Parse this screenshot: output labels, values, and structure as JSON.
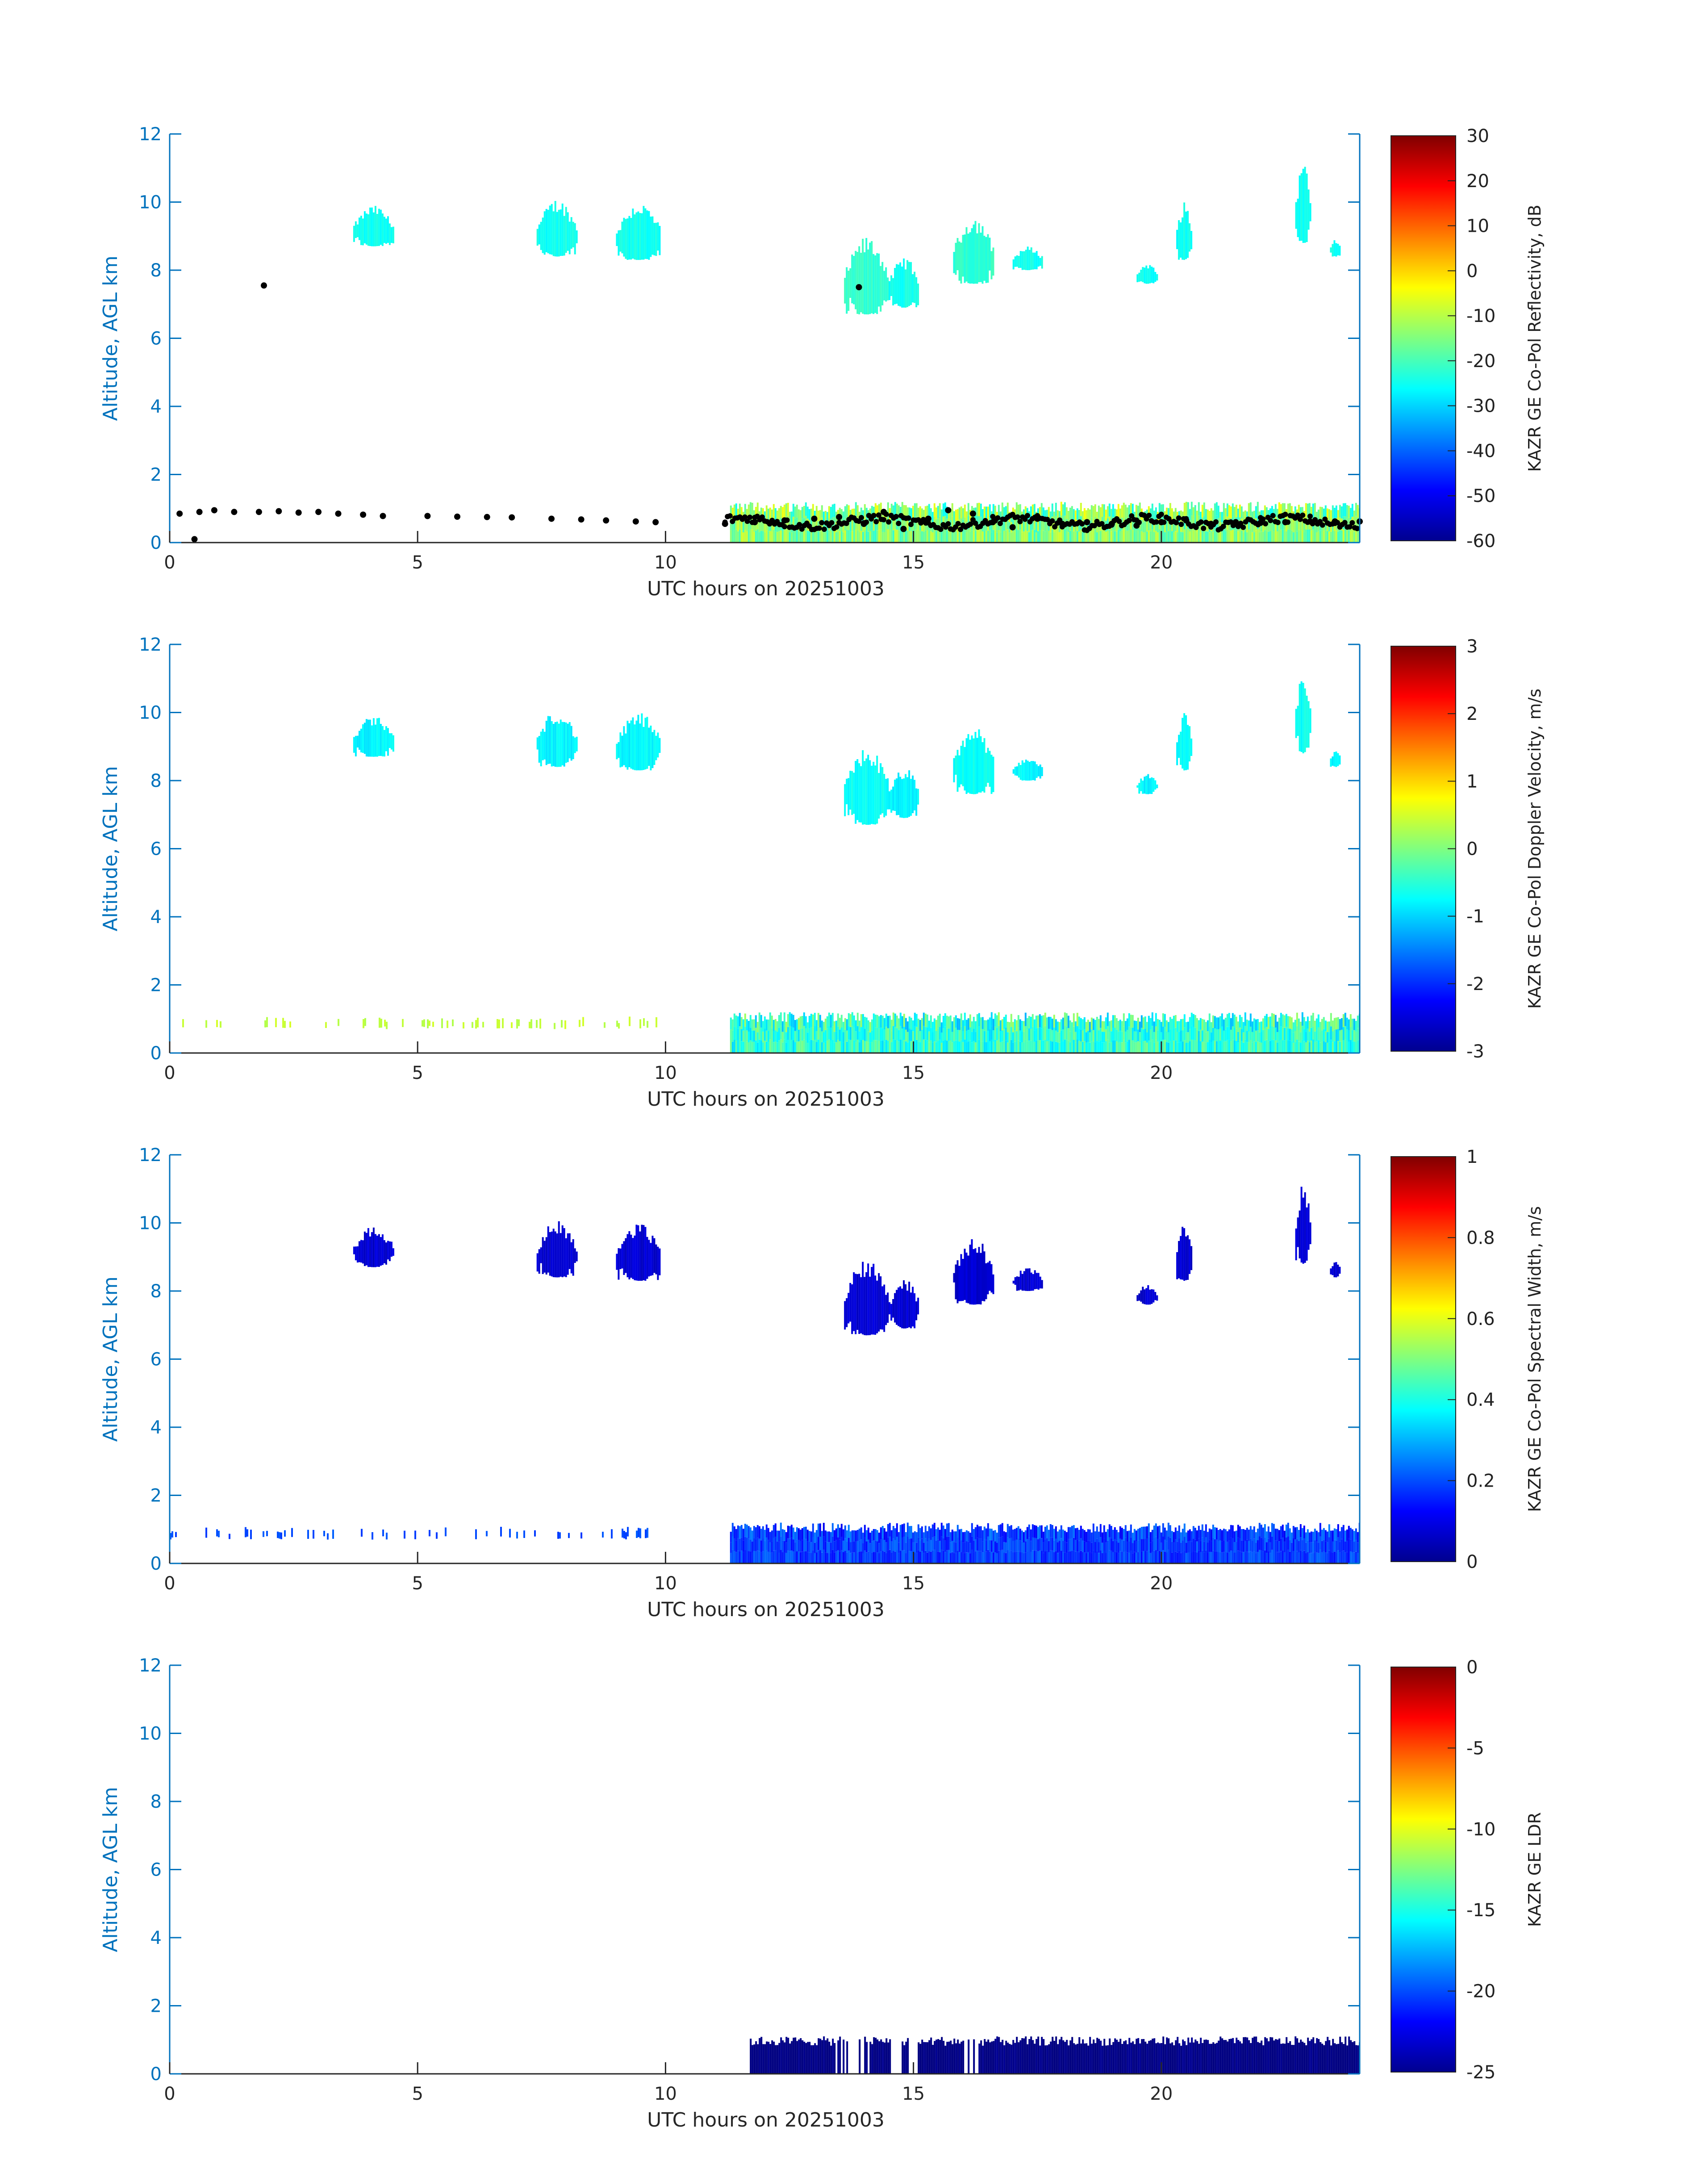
{
  "colors": {
    "axis_y": "#0072BD",
    "axis_x": "#262626",
    "text": "#222222"
  },
  "chart_data": [
    {
      "type": "heatmap",
      "title": "",
      "xlabel": "UTC hours on 20251003",
      "ylabel": "Altitude, AGL km",
      "xlim": [
        0,
        24
      ],
      "ylim": [
        0,
        12
      ],
      "xticks": [
        "0",
        "5",
        "10",
        "15",
        "20"
      ],
      "yticks": [
        "0",
        "2",
        "4",
        "6",
        "8",
        "10",
        "12"
      ],
      "colorbar": {
        "label": "KAZR GE Co-Pol Reflectivity, dB",
        "ticks": [
          "-60",
          "-50",
          "-40",
          "-30",
          "-20",
          "-10",
          "0",
          "10",
          "20",
          "30"
        ],
        "range": [
          -60,
          30
        ],
        "colormap": "jet"
      },
      "overlay": "cloud-base points",
      "regions": [
        {
          "t0": 3.7,
          "t1": 4.5,
          "z0": 8.7,
          "z1": 9.9,
          "v": -25
        },
        {
          "t0": 7.4,
          "t1": 8.2,
          "z0": 8.4,
          "z1": 10.1,
          "v": -25
        },
        {
          "t0": 9.0,
          "t1": 9.9,
          "z0": 8.3,
          "z1": 10.0,
          "v": -25
        },
        {
          "t0": 13.6,
          "t1": 14.5,
          "z0": 6.7,
          "z1": 9.0,
          "v": -22
        },
        {
          "t0": 14.5,
          "t1": 15.1,
          "z0": 6.9,
          "z1": 8.4,
          "v": -25
        },
        {
          "t0": 15.8,
          "t1": 16.6,
          "z0": 7.6,
          "z1": 9.6,
          "v": -22
        },
        {
          "t0": 17.0,
          "t1": 17.6,
          "z0": 8.0,
          "z1": 8.7,
          "v": -25
        },
        {
          "t0": 19.5,
          "t1": 19.9,
          "z0": 7.6,
          "z1": 8.2,
          "v": -25
        },
        {
          "t0": 20.3,
          "t1": 20.6,
          "z0": 8.3,
          "z1": 10.0,
          "v": -25
        },
        {
          "t0": 22.7,
          "t1": 23.0,
          "z0": 8.8,
          "z1": 11.2,
          "v": -25
        },
        {
          "t0": 23.4,
          "t1": 23.6,
          "z0": 8.4,
          "z1": 8.9,
          "v": -25
        },
        {
          "t0": 11.3,
          "t1": 24.0,
          "z0": 0.0,
          "z1": 1.2,
          "v": -15,
          "spread": 18
        }
      ],
      "cloud_base_points": [
        [
          0.2,
          0.85
        ],
        [
          0.6,
          0.9
        ],
        [
          0.9,
          0.95
        ],
        [
          1.3,
          0.9
        ],
        [
          1.8,
          0.9
        ],
        [
          2.2,
          0.92
        ],
        [
          2.6,
          0.88
        ],
        [
          3.0,
          0.9
        ],
        [
          3.4,
          0.85
        ],
        [
          3.9,
          0.82
        ],
        [
          4.3,
          0.78
        ],
        [
          5.2,
          0.78
        ],
        [
          5.8,
          0.76
        ],
        [
          6.4,
          0.75
        ],
        [
          6.9,
          0.74
        ],
        [
          7.7,
          0.7
        ],
        [
          8.3,
          0.68
        ],
        [
          8.8,
          0.65
        ],
        [
          9.4,
          0.62
        ],
        [
          9.8,
          0.6
        ],
        [
          1.9,
          7.55
        ],
        [
          0.5,
          0.1
        ],
        [
          11.2,
          0.55
        ],
        [
          11.8,
          0.6
        ],
        [
          12.4,
          0.65
        ],
        [
          13.0,
          0.7
        ],
        [
          13.5,
          0.75
        ],
        [
          14.0,
          0.55
        ],
        [
          14.4,
          0.9
        ],
        [
          14.8,
          0.4
        ],
        [
          15.3,
          0.7
        ],
        [
          15.7,
          0.95
        ],
        [
          16.2,
          0.85
        ],
        [
          16.6,
          0.6
        ],
        [
          17.0,
          0.45
        ],
        [
          17.5,
          0.7
        ],
        [
          18.0,
          0.55
        ],
        [
          18.5,
          0.6
        ],
        [
          19.0,
          0.55
        ],
        [
          19.5,
          0.5
        ],
        [
          20.0,
          0.6
        ],
        [
          20.5,
          0.65
        ],
        [
          21.0,
          0.55
        ],
        [
          21.5,
          0.6
        ],
        [
          22.0,
          0.58
        ],
        [
          22.5,
          0.6
        ],
        [
          23.0,
          0.62
        ],
        [
          23.5,
          0.62
        ],
        [
          24.0,
          0.62
        ],
        [
          13.9,
          7.5
        ]
      ]
    },
    {
      "type": "heatmap",
      "title": "",
      "xlabel": "UTC hours on 20251003",
      "ylabel": "Altitude, AGL km",
      "xlim": [
        0,
        24
      ],
      "ylim": [
        0,
        12
      ],
      "xticks": [
        "0",
        "5",
        "10",
        "15",
        "20"
      ],
      "yticks": [
        "0",
        "2",
        "4",
        "6",
        "8",
        "10",
        "12"
      ],
      "colorbar": {
        "label": "KAZR GE Co-Pol Doppler Velocity, m/s",
        "ticks": [
          "-3",
          "-2",
          "-1",
          "0",
          "1",
          "2",
          "3"
        ],
        "range": [
          -3,
          3
        ],
        "colormap": "jet"
      },
      "regions": [
        {
          "t0": 3.7,
          "t1": 4.5,
          "z0": 8.7,
          "z1": 9.9,
          "v": -0.8
        },
        {
          "t0": 7.4,
          "t1": 8.2,
          "z0": 8.4,
          "z1": 10.1,
          "v": -0.8
        },
        {
          "t0": 9.0,
          "t1": 9.9,
          "z0": 8.3,
          "z1": 10.0,
          "v": -0.8
        },
        {
          "t0": 13.6,
          "t1": 14.5,
          "z0": 6.7,
          "z1": 9.0,
          "v": -0.7
        },
        {
          "t0": 14.5,
          "t1": 15.1,
          "z0": 6.9,
          "z1": 8.4,
          "v": -0.8
        },
        {
          "t0": 15.8,
          "t1": 16.6,
          "z0": 7.6,
          "z1": 9.6,
          "v": -0.7
        },
        {
          "t0": 17.0,
          "t1": 17.6,
          "z0": 8.0,
          "z1": 8.7,
          "v": -0.8
        },
        {
          "t0": 19.5,
          "t1": 19.9,
          "z0": 7.6,
          "z1": 8.2,
          "v": -0.8
        },
        {
          "t0": 20.3,
          "t1": 20.6,
          "z0": 8.3,
          "z1": 10.0,
          "v": -0.7
        },
        {
          "t0": 22.7,
          "t1": 23.0,
          "z0": 8.8,
          "z1": 11.2,
          "v": -0.7
        },
        {
          "t0": 23.4,
          "t1": 23.6,
          "z0": 8.4,
          "z1": 8.9,
          "v": -0.8
        },
        {
          "t0": 0.0,
          "t1": 9.8,
          "z0": 0.7,
          "z1": 1.0,
          "v": 0.4,
          "sparse": true
        },
        {
          "t0": 11.3,
          "t1": 24.0,
          "z0": 0.0,
          "z1": 1.2,
          "v": -0.5,
          "spread": 1.2
        }
      ]
    },
    {
      "type": "heatmap",
      "title": "",
      "xlabel": "UTC hours on 20251003",
      "ylabel": "Altitude, AGL km",
      "xlim": [
        0,
        24
      ],
      "ylim": [
        0,
        12
      ],
      "xticks": [
        "0",
        "5",
        "10",
        "15",
        "20"
      ],
      "yticks": [
        "0",
        "2",
        "4",
        "6",
        "8",
        "10",
        "12"
      ],
      "colorbar": {
        "label": "KAZR GE Co-Pol Spectral Width, m/s",
        "ticks": [
          "0",
          "0.2",
          "0.4",
          "0.6",
          "0.8",
          "1"
        ],
        "range": [
          0,
          1
        ],
        "colormap": "jet"
      },
      "regions": [
        {
          "t0": 3.7,
          "t1": 4.5,
          "z0": 8.7,
          "z1": 9.9,
          "v": 0.08
        },
        {
          "t0": 7.4,
          "t1": 8.2,
          "z0": 8.4,
          "z1": 10.1,
          "v": 0.08
        },
        {
          "t0": 9.0,
          "t1": 9.9,
          "z0": 8.3,
          "z1": 10.0,
          "v": 0.08
        },
        {
          "t0": 13.6,
          "t1": 14.5,
          "z0": 6.7,
          "z1": 9.0,
          "v": 0.08
        },
        {
          "t0": 14.5,
          "t1": 15.1,
          "z0": 6.9,
          "z1": 8.4,
          "v": 0.08
        },
        {
          "t0": 15.8,
          "t1": 16.6,
          "z0": 7.6,
          "z1": 9.6,
          "v": 0.08
        },
        {
          "t0": 17.0,
          "t1": 17.6,
          "z0": 8.0,
          "z1": 8.7,
          "v": 0.08
        },
        {
          "t0": 19.5,
          "t1": 19.9,
          "z0": 7.6,
          "z1": 8.2,
          "v": 0.08
        },
        {
          "t0": 20.3,
          "t1": 20.6,
          "z0": 8.3,
          "z1": 10.0,
          "v": 0.08
        },
        {
          "t0": 22.7,
          "t1": 23.0,
          "z0": 8.8,
          "z1": 11.2,
          "v": 0.08
        },
        {
          "t0": 23.4,
          "t1": 23.6,
          "z0": 8.4,
          "z1": 8.9,
          "v": 0.08
        },
        {
          "t0": 0.0,
          "t1": 9.8,
          "z0": 0.7,
          "z1": 1.0,
          "v": 0.2,
          "sparse": true
        },
        {
          "t0": 11.3,
          "t1": 24.0,
          "z0": 0.0,
          "z1": 1.2,
          "v": 0.18,
          "spread": 0.12
        }
      ]
    },
    {
      "type": "heatmap",
      "title": "",
      "xlabel": "UTC hours on 20251003",
      "ylabel": "Altitude, AGL km",
      "xlim": [
        0,
        24
      ],
      "ylim": [
        0,
        12
      ],
      "xticks": [
        "0",
        "5",
        "10",
        "15",
        "20"
      ],
      "yticks": [
        "0",
        "2",
        "4",
        "6",
        "8",
        "10",
        "12"
      ],
      "colorbar": {
        "label": "KAZR GE LDR",
        "ticks": [
          "-25",
          "-20",
          "-15",
          "-10",
          "-5",
          "0"
        ],
        "range": [
          -25,
          0
        ],
        "colormap": "jet"
      },
      "regions": [
        {
          "t0": 11.7,
          "t1": 24.0,
          "z0": 0.0,
          "z1": 1.1,
          "v": -25,
          "gaps": [
            [
              13.4,
              14.1
            ],
            [
              14.5,
              15.2
            ],
            [
              16.0,
              16.3
            ]
          ]
        }
      ]
    }
  ]
}
